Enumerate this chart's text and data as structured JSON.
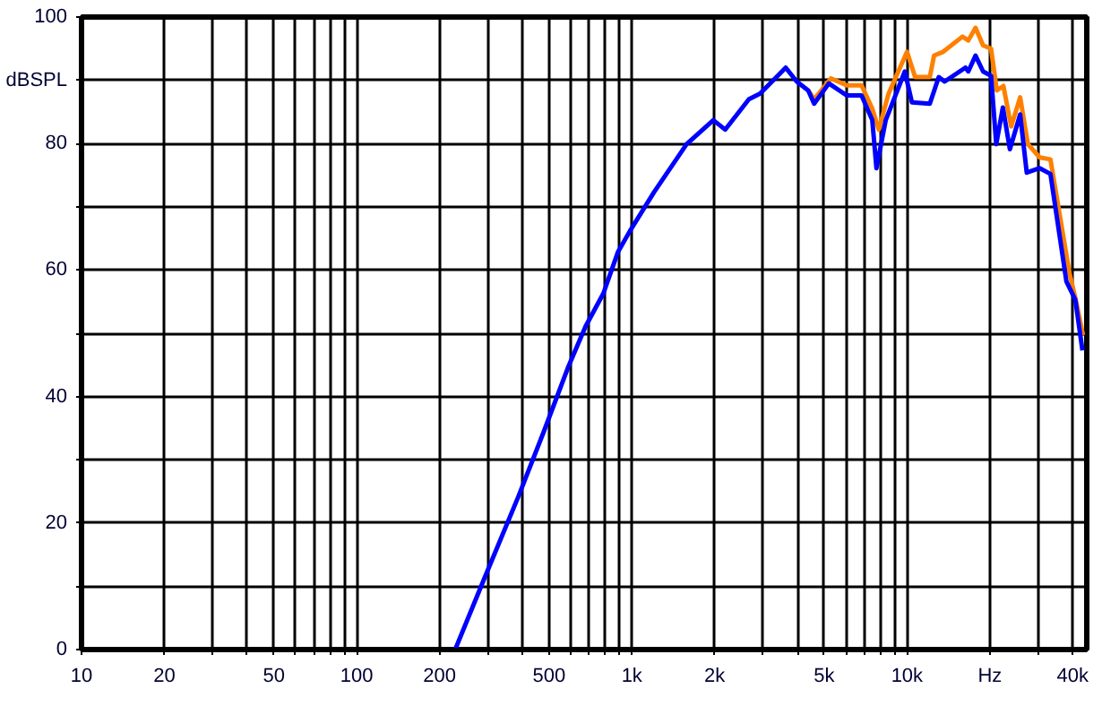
{
  "chart_data": {
    "type": "line",
    "log": "x",
    "grid": true,
    "line_style": "solid",
    "marker": "none",
    "xlim": [
      10,
      45000
    ],
    "ylim": [
      0,
      100
    ],
    "xticks": [
      10,
      20,
      {
        "value": 30,
        "label": null
      },
      {
        "value": 40,
        "label": null
      },
      50,
      {
        "value": 60,
        "label": null
      },
      {
        "value": 70,
        "label": null
      },
      {
        "value": 80,
        "label": null
      },
      {
        "value": 90,
        "label": null
      },
      100,
      200,
      {
        "value": 300,
        "label": null
      },
      {
        "value": 400,
        "label": null
      },
      500,
      {
        "value": 600,
        "label": null
      },
      {
        "value": 700,
        "label": null
      },
      {
        "value": 800,
        "label": null
      },
      {
        "value": 900,
        "label": null
      },
      {
        "value": 1000,
        "label": "1k"
      },
      {
        "value": 2000,
        "label": "2k"
      },
      {
        "value": 3000,
        "label": null
      },
      {
        "value": 4000,
        "label": null
      },
      {
        "value": 5000,
        "label": "5k"
      },
      {
        "value": 6000,
        "label": null
      },
      {
        "value": 7000,
        "label": null
      },
      {
        "value": 8000,
        "label": null
      },
      {
        "value": 9000,
        "label": null
      },
      {
        "value": 10000,
        "label": "10k"
      },
      {
        "value": 20000,
        "label": "Hz"
      },
      {
        "value": 30000,
        "label": null
      },
      {
        "value": 40000,
        "label": "40k"
      }
    ],
    "yticks": [
      0,
      {
        "value": 10,
        "label": null
      },
      20,
      {
        "value": 30,
        "label": null
      },
      40,
      {
        "value": 50,
        "label": null
      },
      60,
      {
        "value": 70,
        "label": null
      },
      80,
      {
        "value": 90,
        "label": "dBSPL"
      },
      100
    ],
    "series": [
      {
        "color": "#ff8000",
        "x": [
          4375,
          4596,
          5290,
          6036,
          6836,
          7477,
          7900,
          8570,
          10000,
          10700,
          12100,
          12540,
          13530,
          15900,
          16700,
          17740,
          18900,
          20200,
          21200,
          22400,
          23900,
          25770,
          27500,
          30350,
          33200,
          38900,
          40900,
          43600
        ],
        "values": [
          88.4,
          87.0,
          90.3,
          89.2,
          89.2,
          85.5,
          82.2,
          87.9,
          94.5,
          90.5,
          90.5,
          93.9,
          94.5,
          96.9,
          96.3,
          98.3,
          95.5,
          95.0,
          88.4,
          89.1,
          82.7,
          87.3,
          79.9,
          77.8,
          77.5,
          59.6,
          55.6,
          49.7
        ]
      },
      {
        "color": "#0000ff",
        "x": [
          228,
          292,
          387,
          480,
          585,
          679,
          788,
          891,
          985,
          1203,
          1581,
          1977,
          2183,
          2663,
          2923,
          3624,
          3973,
          4375,
          4596,
          5200,
          6036,
          6836,
          7477,
          7742,
          8368,
          9817,
          10420,
          12100,
          13040,
          13700,
          16300,
          16700,
          17740,
          18900,
          20200,
          21100,
          22300,
          23650,
          25770,
          27230,
          30350,
          33200,
          37950,
          40900,
          43400
        ],
        "values": [
          0,
          11.4,
          24.2,
          34.6,
          44.5,
          51.1,
          56.3,
          62.9,
          66.2,
          72.3,
          79.9,
          83.7,
          82.2,
          87.0,
          87.9,
          92.0,
          89.8,
          88.4,
          86.3,
          89.5,
          87.6,
          87.6,
          83.7,
          76.1,
          83.7,
          91.4,
          86.5,
          86.3,
          90.5,
          89.8,
          92.0,
          91.4,
          93.9,
          91.4,
          90.7,
          79.9,
          85.7,
          79.1,
          84.6,
          75.4,
          76.1,
          75.2,
          58.2,
          55.3,
          47.3
        ]
      }
    ]
  }
}
